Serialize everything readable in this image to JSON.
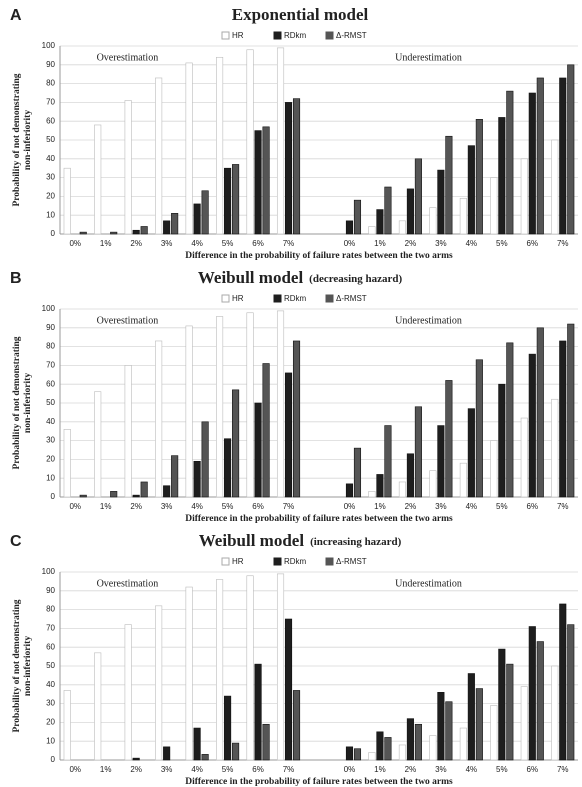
{
  "chart_data": [
    {
      "type": "bar",
      "panel": "A",
      "title": "Exponential model",
      "annotations": [
        "Overestimation",
        "Underestimation"
      ],
      "ylabel": [
        "Probability of not demonstrating",
        "non-inferiority"
      ],
      "xlabel": "Difference in the probability of failure rates between the two arms",
      "categories": [
        "0%",
        "1%",
        "2%",
        "3%",
        "4%",
        "5%",
        "6%",
        "7%",
        null,
        "0%",
        "1%",
        "2%",
        "3%",
        "4%",
        "5%",
        "6%",
        "7%"
      ],
      "ylim": [
        0,
        100
      ],
      "yticks": [
        0,
        10,
        20,
        30,
        40,
        50,
        60,
        70,
        80,
        90,
        100
      ],
      "grid": true,
      "legend": "top",
      "series": [
        {
          "name": "HR",
          "color": "#ffffff",
          "values": [
            35,
            58,
            71,
            83,
            91,
            94,
            98,
            99,
            null,
            0,
            4,
            7,
            14,
            19,
            30,
            40,
            50
          ]
        },
        {
          "name": "RDkm",
          "color": "#1e1e1e",
          "values": [
            0,
            0,
            2,
            7,
            16,
            35,
            55,
            70,
            null,
            7,
            13,
            24,
            34,
            47,
            62,
            75,
            83
          ]
        },
        {
          "name": "Δ-RMST",
          "color": "#555555",
          "values": [
            1,
            1,
            4,
            11,
            23,
            37,
            57,
            72,
            null,
            18,
            25,
            40,
            52,
            61,
            76,
            83,
            90
          ]
        }
      ]
    },
    {
      "type": "bar",
      "panel": "B",
      "title": "Weibull model",
      "subtitle": "(decreasing hazard)",
      "annotations": [
        "Overestimation",
        "Underestimation"
      ],
      "ylabel": [
        "Probability of not demonstrating",
        "non-inferiority"
      ],
      "xlabel": "Difference in the probability of failure rates between the two arms",
      "categories": [
        "0%",
        "1%",
        "2%",
        "3%",
        "4%",
        "5%",
        "6%",
        "7%",
        null,
        "0%",
        "1%",
        "2%",
        "3%",
        "4%",
        "5%",
        "6%",
        "7%"
      ],
      "ylim": [
        0,
        100
      ],
      "yticks": [
        0,
        10,
        20,
        30,
        40,
        50,
        60,
        70,
        80,
        90,
        100
      ],
      "grid": true,
      "legend": "top",
      "series": [
        {
          "name": "HR",
          "color": "#ffffff",
          "values": [
            36,
            56,
            70,
            83,
            91,
            96,
            98,
            99,
            null,
            0,
            3,
            8,
            14,
            18,
            30,
            42,
            52
          ]
        },
        {
          "name": "RDkm",
          "color": "#1e1e1e",
          "values": [
            0,
            0,
            1,
            6,
            19,
            31,
            50,
            66,
            null,
            7,
            12,
            23,
            38,
            47,
            60,
            76,
            83
          ]
        },
        {
          "name": "Δ-RMST",
          "color": "#555555",
          "values": [
            1,
            3,
            8,
            22,
            40,
            57,
            71,
            83,
            null,
            26,
            38,
            48,
            62,
            73,
            82,
            90,
            92
          ]
        }
      ]
    },
    {
      "type": "bar",
      "panel": "C",
      "title": "Weibull model",
      "subtitle": "(increasing hazard)",
      "annotations": [
        "Overestimation",
        "Underestimation"
      ],
      "ylabel": [
        "Probability of not demonstrating",
        "non-inferiority"
      ],
      "xlabel": "Difference in the probability of failure rates between the two arms",
      "categories": [
        "0%",
        "1%",
        "2%",
        "3%",
        "4%",
        "5%",
        "6%",
        "7%",
        null,
        "0%",
        "1%",
        "2%",
        "3%",
        "4%",
        "5%",
        "6%",
        "7%"
      ],
      "ylim": [
        0,
        100
      ],
      "yticks": [
        0,
        10,
        20,
        30,
        40,
        50,
        60,
        70,
        80,
        90,
        100
      ],
      "grid": true,
      "legend": "top",
      "series": [
        {
          "name": "HR",
          "color": "#ffffff",
          "values": [
            37,
            57,
            72,
            82,
            92,
            96,
            98,
            99,
            null,
            0,
            4,
            8,
            13,
            17,
            29,
            39,
            50
          ]
        },
        {
          "name": "RDkm",
          "color": "#1e1e1e",
          "values": [
            0,
            0,
            1,
            7,
            17,
            34,
            51,
            75,
            null,
            7,
            15,
            22,
            36,
            46,
            59,
            71,
            83
          ]
        },
        {
          "name": "Δ-RMST",
          "color": "#555555",
          "values": [
            0,
            0,
            0,
            0,
            3,
            9,
            19,
            37,
            null,
            6,
            12,
            19,
            31,
            38,
            51,
            63,
            72
          ]
        }
      ]
    }
  ]
}
